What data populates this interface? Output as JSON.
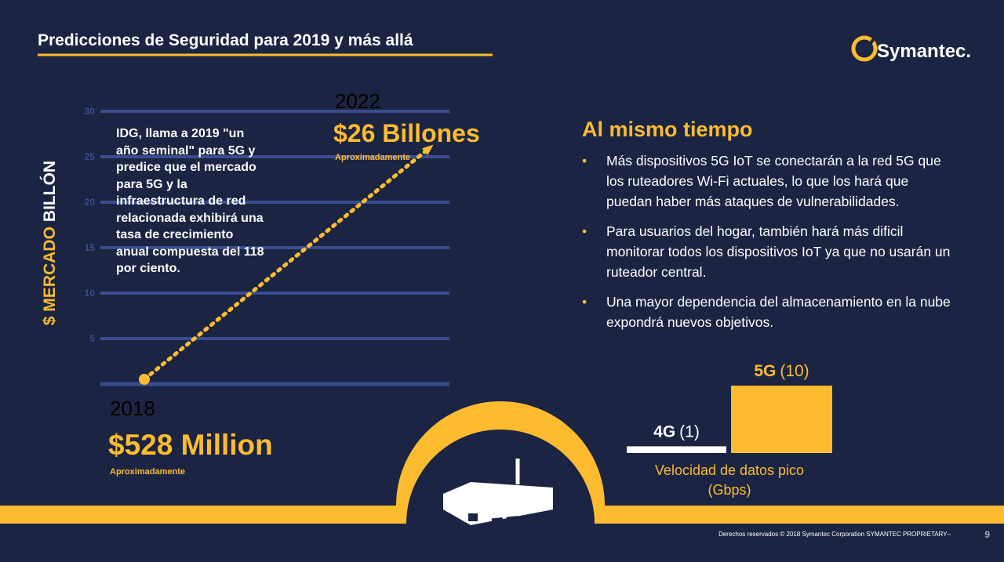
{
  "header": {
    "title": "Predicciones de Seguridad para 2019 y más allá",
    "logo": "Symantec."
  },
  "chart_data": [
    {
      "type": "line",
      "ylabel": [
        "$ MERCADO",
        "BILLÓN"
      ],
      "categories": [
        "2018",
        "2022"
      ],
      "values": [
        0.528,
        26
      ],
      "value_labels": [
        "$528 Million",
        "$26 Billones"
      ],
      "notes": [
        "Aproximadamente",
        "Aproximadamente"
      ],
      "annotation": "IDG, llama a 2019 \"un año seminal\" para 5G y predice que el mercado para 5G y la infraestructura de red relacionada exhibirá una tasa de crecimiento anual compuesta del 118 por ciento.",
      "ylim": [
        0,
        30
      ],
      "yticks": [
        5,
        10,
        15,
        20,
        25,
        30
      ],
      "grid": true,
      "color": "#fdbb30"
    },
    {
      "type": "bar",
      "categories": [
        "4G",
        "5G"
      ],
      "values": [
        1,
        10
      ],
      "value_labels": [
        "(1)",
        "(10)"
      ],
      "colors": [
        "#ffffff",
        "#fdbb30"
      ],
      "xlabel": "Velocidad de datos pico (Gbps)",
      "ylim": [
        0,
        10
      ]
    }
  ],
  "panel": {
    "title": "Al mismo tiempo",
    "bullets": [
      "Más dispositivos 5G IoT se conectarán a la red 5G que los ruteadores Wi-Fi actuales, lo que los hará que puedan haber más ataques de vulnerabilidades.",
      "Para usuarios del hogar, también hará más dificil monitorar todos los dispositivos IoT ya que no usarán un ruteador central.",
      "Una mayor dependencia del almacenamiento en la nube expondrá nuevos objetivos."
    ]
  },
  "footer": {
    "copyright": "Derechos reservados © 2018 Symantec Corporation SYMANTEC PROPRIETARY–",
    "page": "9"
  }
}
